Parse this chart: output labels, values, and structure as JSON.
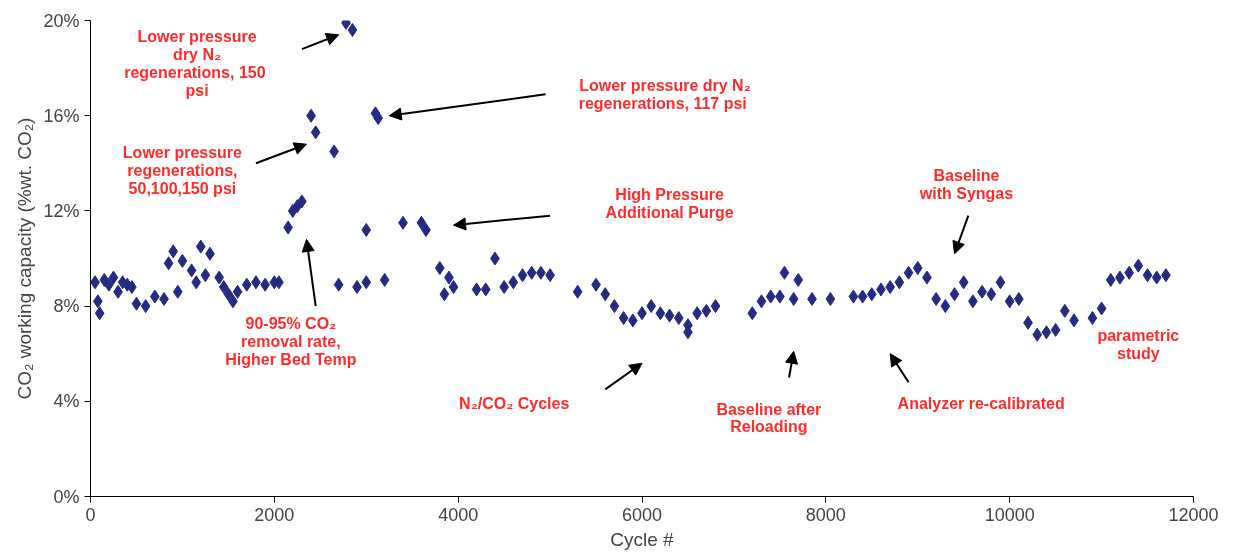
{
  "chart_data": {
    "type": "scatter",
    "xlabel": "Cycle #",
    "ylabel": "CO₂ working capacity (%wt. CO₂)",
    "xlim": [
      0,
      12000
    ],
    "ylim": [
      0,
      20
    ],
    "xticks": [
      0,
      2000,
      4000,
      6000,
      8000,
      10000,
      12000
    ],
    "yticks": [
      {
        "value": 0,
        "label": "0%"
      },
      {
        "value": 4,
        "label": "4%"
      },
      {
        "value": 8,
        "label": "8%"
      },
      {
        "value": 12,
        "label": "12%"
      },
      {
        "value": 16,
        "label": "16%"
      },
      {
        "value": 20,
        "label": "20%"
      }
    ],
    "grid": false,
    "marker": "diamond",
    "series": [
      {
        "color": "#262a80",
        "x": [
          50,
          80,
          100,
          150,
          200,
          250,
          300,
          350,
          400,
          450,
          500,
          600,
          700,
          800,
          850,
          900,
          950,
          1000,
          1100,
          1150,
          1200,
          1250,
          1300,
          1400,
          1450,
          1500,
          1550,
          1600,
          1700,
          1800,
          1900,
          2000,
          2050,
          2150,
          2200,
          2250,
          2300,
          2400,
          2450,
          2650,
          2780,
          2850,
          3100,
          3130,
          2700,
          2900,
          3000,
          3200,
          3000,
          3400,
          3600,
          3650,
          3800,
          3850,
          3900,
          3950,
          4200,
          4300,
          4400,
          4500,
          4600,
          4700,
          4800,
          4900,
          5000,
          5300,
          5500,
          5600,
          5700,
          5800,
          5900,
          6000,
          6100,
          6200,
          6300,
          6400,
          6500,
          6500,
          6600,
          6700,
          6800,
          7200,
          7300,
          7400,
          7500,
          7550,
          7650,
          7700,
          7850,
          8050,
          8300,
          8400,
          8500,
          8600,
          8700,
          8800,
          8900,
          9000,
          9100,
          9200,
          9300,
          9400,
          9500,
          9600,
          9700,
          9800,
          9900,
          10000,
          10100,
          10200,
          10300,
          10400,
          10500,
          10600,
          10700,
          10900,
          11000,
          11100,
          11200,
          11300,
          11400,
          11500,
          11600,
          11700
        ],
        "values": [
          9.0,
          8.2,
          7.7,
          9.1,
          8.9,
          9.2,
          8.6,
          9.0,
          8.9,
          8.8,
          8.1,
          8.0,
          8.4,
          8.3,
          9.8,
          10.3,
          8.6,
          9.9,
          9.5,
          9.0,
          10.5,
          9.3,
          10.2,
          9.2,
          8.8,
          8.5,
          8.2,
          8.6,
          8.9,
          9.0,
          8.9,
          9.0,
          9.0,
          11.3,
          12.0,
          12.2,
          12.4,
          16.0,
          15.3,
          14.5,
          19.9,
          19.6,
          16.1,
          15.9,
          8.9,
          8.8,
          9.0,
          9.1,
          11.2,
          11.5,
          11.5,
          11.2,
          9.6,
          8.5,
          9.2,
          8.8,
          8.7,
          8.7,
          10.0,
          8.8,
          9.0,
          9.3,
          9.4,
          9.4,
          9.3,
          8.6,
          8.9,
          8.5,
          8.0,
          7.5,
          7.4,
          7.7,
          8.0,
          7.7,
          7.6,
          7.5,
          7.2,
          6.9,
          7.7,
          7.8,
          8.0,
          7.7,
          8.2,
          8.4,
          8.4,
          9.4,
          8.3,
          9.1,
          8.3,
          8.3,
          8.4,
          8.4,
          8.5,
          8.7,
          8.8,
          9.0,
          9.4,
          9.6,
          9.2,
          8.3,
          8.0,
          8.5,
          9.0,
          8.2,
          8.6,
          8.5,
          9.0,
          8.2,
          8.3,
          7.3,
          6.8,
          6.9,
          7.0,
          7.8,
          7.4,
          7.5,
          7.9,
          9.1,
          9.2,
          9.4,
          9.7,
          9.3,
          9.2,
          9.3
        ]
      }
    ],
    "annotations": [
      "Lower pressure\ndry N₂\nregenerations,  150\npsi",
      "Lower pressure dry N₂\nregenerations,  117 psi",
      "Lower pressure\nregenerations,\n50,100,150 psi",
      "90-95% CO₂\nremoval rate,\nHigher Bed Temp",
      "High Pressure\nAdditional Purge",
      "N₂/CO₂ Cycles",
      "Baseline after\nReloading",
      "Analyzer re-calibrated",
      "Baseline\nwith Syngas",
      "parametric\nstudy"
    ]
  }
}
